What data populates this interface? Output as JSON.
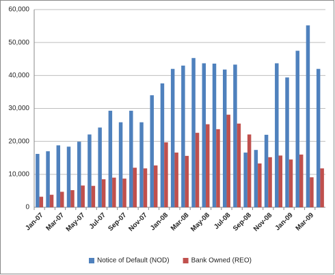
{
  "chart_data": {
    "type": "bar",
    "categories": [
      "Jan-07",
      null,
      "Mar-07",
      null,
      "May-07",
      null,
      "Jul-07",
      null,
      "Sep-07",
      null,
      "Nov-07",
      null,
      "Jan-08",
      null,
      "Mar-08",
      null,
      "May-08",
      null,
      "Jul-08",
      null,
      "Sep-08",
      null,
      "Nov-08",
      null,
      "Jan-09",
      null,
      "Mar-09",
      null
    ],
    "series": [
      {
        "name": "Notice of Default (NOD)",
        "color": "#4f81bd",
        "values": [
          16200,
          17000,
          18800,
          18400,
          19900,
          22100,
          24200,
          29300,
          25800,
          29300,
          25800,
          34000,
          37600,
          42000,
          43000,
          45300,
          43700,
          43600,
          41800,
          43300,
          16600,
          17400,
          22000,
          43700,
          39400,
          47500,
          55200,
          42000
        ]
      },
      {
        "name": "Bank Owned (REO)",
        "color": "#c0504d",
        "values": [
          3200,
          3800,
          4700,
          5200,
          6600,
          6500,
          8500,
          9000,
          8700,
          12000,
          11800,
          12700,
          19700,
          16600,
          15600,
          22600,
          25200,
          23700,
          28100,
          25400,
          22100,
          13300,
          15200,
          15700,
          14500,
          16000,
          9100,
          11800
        ]
      }
    ],
    "ylim": [
      0,
      60000
    ],
    "yticks": [
      0,
      {
        "value": 10000,
        "label": "10,000"
      },
      {
        "value": 20000,
        "label": "20,000"
      },
      {
        "value": 30000,
        "label": "30,000"
      },
      {
        "value": 40000,
        "label": "40,000"
      },
      {
        "value": 50000,
        "label": "50,000"
      },
      {
        "value": 60000,
        "label": "60,000"
      }
    ],
    "grid": true,
    "legend": "bottom"
  }
}
